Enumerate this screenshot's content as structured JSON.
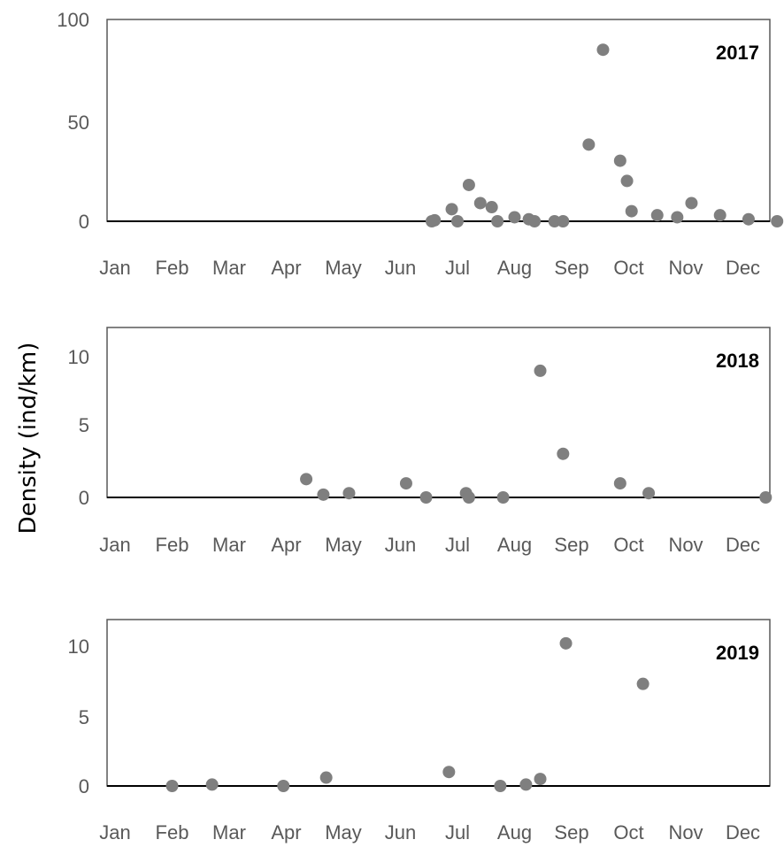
{
  "ylabel": "Density (ind/km)",
  "colors": {
    "marker": "#7f7f7f",
    "frame": "#595959",
    "zero_line": "#000000",
    "tick_text": "#595959"
  },
  "chart_data": [
    {
      "type": "scatter",
      "title": "2017",
      "ylim": [
        0,
        100
      ],
      "yticks": [
        "0",
        "50",
        "100"
      ],
      "x_categories": [
        "Jan",
        "Feb",
        "Mar",
        "Apr",
        "May",
        "Jun",
        "Jul",
        "Aug",
        "Sep",
        "Oct",
        "Nov",
        "Dec"
      ],
      "grid": false,
      "points": [
        {
          "x": 6.55,
          "y": 0
        },
        {
          "x": 6.6,
          "y": 0.5
        },
        {
          "x": 6.9,
          "y": 6
        },
        {
          "x": 7.0,
          "y": 0
        },
        {
          "x": 7.2,
          "y": 18
        },
        {
          "x": 7.4,
          "y": 9
        },
        {
          "x": 7.6,
          "y": 7
        },
        {
          "x": 7.7,
          "y": 0
        },
        {
          "x": 8.0,
          "y": 2
        },
        {
          "x": 8.25,
          "y": 1
        },
        {
          "x": 8.35,
          "y": 0
        },
        {
          "x": 8.7,
          "y": 0
        },
        {
          "x": 8.85,
          "y": 0
        },
        {
          "x": 9.3,
          "y": 38
        },
        {
          "x": 9.55,
          "y": 85
        },
        {
          "x": 9.85,
          "y": 30
        },
        {
          "x": 9.97,
          "y": 20
        },
        {
          "x": 10.05,
          "y": 5
        },
        {
          "x": 10.5,
          "y": 3
        },
        {
          "x": 10.85,
          "y": 2
        },
        {
          "x": 11.1,
          "y": 9
        },
        {
          "x": 11.6,
          "y": 3
        },
        {
          "x": 12.1,
          "y": 1
        },
        {
          "x": 12.6,
          "y": 0
        }
      ]
    },
    {
      "type": "scatter",
      "title": "2018",
      "ylim": [
        0,
        12
      ],
      "yticks": [
        "0",
        "5",
        "10"
      ],
      "x_categories": [
        "Jan",
        "Feb",
        "Mar",
        "Apr",
        "May",
        "Jun",
        "Jul",
        "Aug",
        "Sep",
        "Oct",
        "Nov",
        "Dec"
      ],
      "grid": false,
      "points": [
        {
          "x": 4.35,
          "y": 1.3
        },
        {
          "x": 4.65,
          "y": 0.2
        },
        {
          "x": 5.1,
          "y": 0.3
        },
        {
          "x": 6.1,
          "y": 1.0
        },
        {
          "x": 6.45,
          "y": 0
        },
        {
          "x": 7.15,
          "y": 0.3
        },
        {
          "x": 7.2,
          "y": 0
        },
        {
          "x": 7.8,
          "y": 0
        },
        {
          "x": 8.45,
          "y": 9.0
        },
        {
          "x": 8.85,
          "y": 3.1
        },
        {
          "x": 9.85,
          "y": 1.0
        },
        {
          "x": 10.35,
          "y": 0.3
        },
        {
          "x": 12.4,
          "y": 0
        }
      ]
    },
    {
      "type": "scatter",
      "title": "2019",
      "ylim": [
        0,
        12
      ],
      "yticks": [
        "0",
        "5",
        "10"
      ],
      "x_categories": [
        "Jan",
        "Feb",
        "Mar",
        "Apr",
        "May",
        "Jun",
        "Jul",
        "Aug",
        "Sep",
        "Oct",
        "Nov",
        "Dec"
      ],
      "grid": false,
      "points": [
        {
          "x": 2.0,
          "y": 0
        },
        {
          "x": 2.7,
          "y": 0.1
        },
        {
          "x": 3.95,
          "y": 0
        },
        {
          "x": 4.7,
          "y": 0.6
        },
        {
          "x": 6.85,
          "y": 1.0
        },
        {
          "x": 7.75,
          "y": 0
        },
        {
          "x": 8.2,
          "y": 0.1
        },
        {
          "x": 8.45,
          "y": 0.5
        },
        {
          "x": 8.9,
          "y": 10.2
        },
        {
          "x": 10.25,
          "y": 7.3
        }
      ]
    }
  ]
}
